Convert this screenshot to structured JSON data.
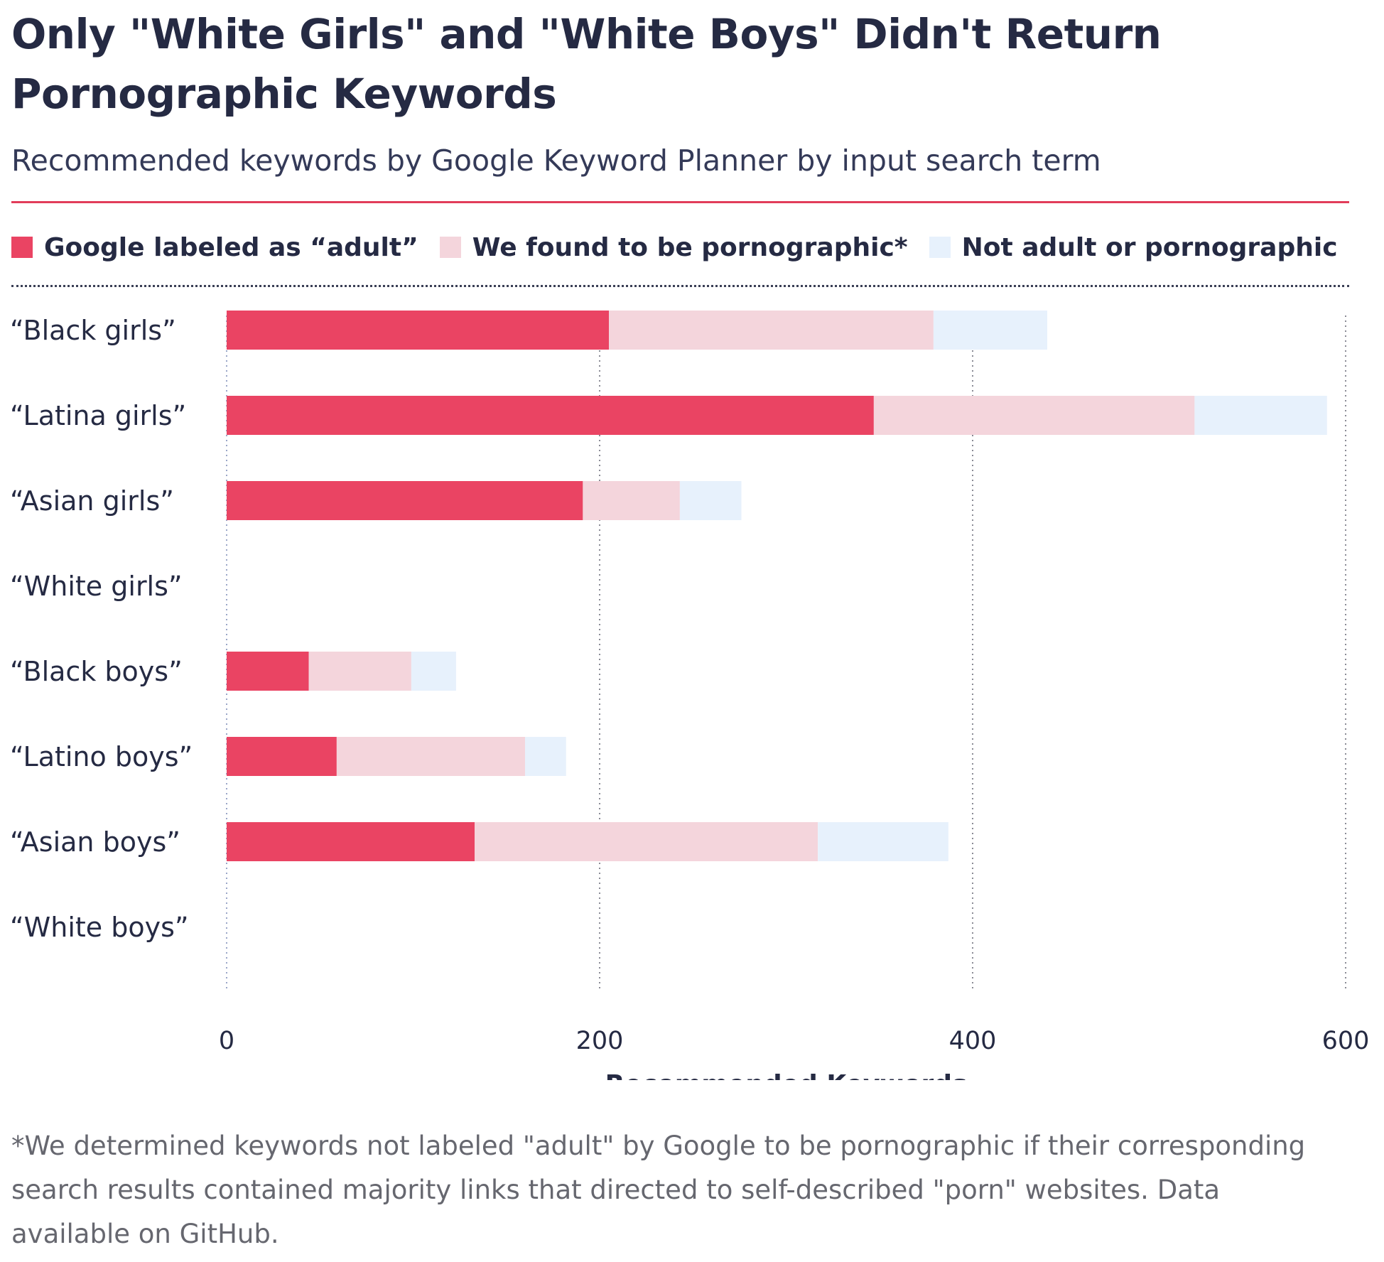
{
  "title": "Only \"White Girls\" and \"White Boys\" Didn't Return Pornographic Keywords",
  "subtitle": "Recommended keywords by Google Keyword Planner by input search term",
  "footnote": "*We determined keywords not labeled \"adult\" by Google to be pornographic if their corresponding search results contained majority links that directed to self-described \"porn\" websites. Data available on GitHub.",
  "colors": {
    "adult": "#ea4463",
    "porn": "#f4d5dc",
    "not_adult": "#e7f1fc",
    "text": "#252a43",
    "rule": "#e23c5a",
    "grid": "#8a8b95"
  },
  "chart_data": {
    "type": "bar",
    "orientation": "horizontal",
    "stacked": true,
    "categories": [
      "“Black girls”",
      "“Latina girls”",
      "“Asian girls”",
      "“White girls”",
      "“Black boys”",
      "“Latino boys”",
      "“Asian boys”",
      "“White boys”"
    ],
    "series": [
      {
        "name": "Google labeled as “adult”",
        "color": "#ea4463",
        "values": [
          205,
          347,
          191,
          0,
          44,
          59,
          133,
          0
        ]
      },
      {
        "name": "We found to be pornographic*",
        "color": "#f4d5dc",
        "values": [
          174,
          172,
          52,
          0,
          55,
          101,
          184,
          0
        ]
      },
      {
        "name": "Not adult or pornographic",
        "color": "#e7f1fc",
        "values": [
          61,
          71,
          33,
          0,
          24,
          22,
          70,
          0
        ]
      }
    ],
    "xlabel": "Recommended Keywords",
    "ylabel": "",
    "xlim": [
      0,
      600
    ],
    "xticks": [
      0,
      200,
      400,
      600
    ],
    "grid": true,
    "legend": "top"
  }
}
